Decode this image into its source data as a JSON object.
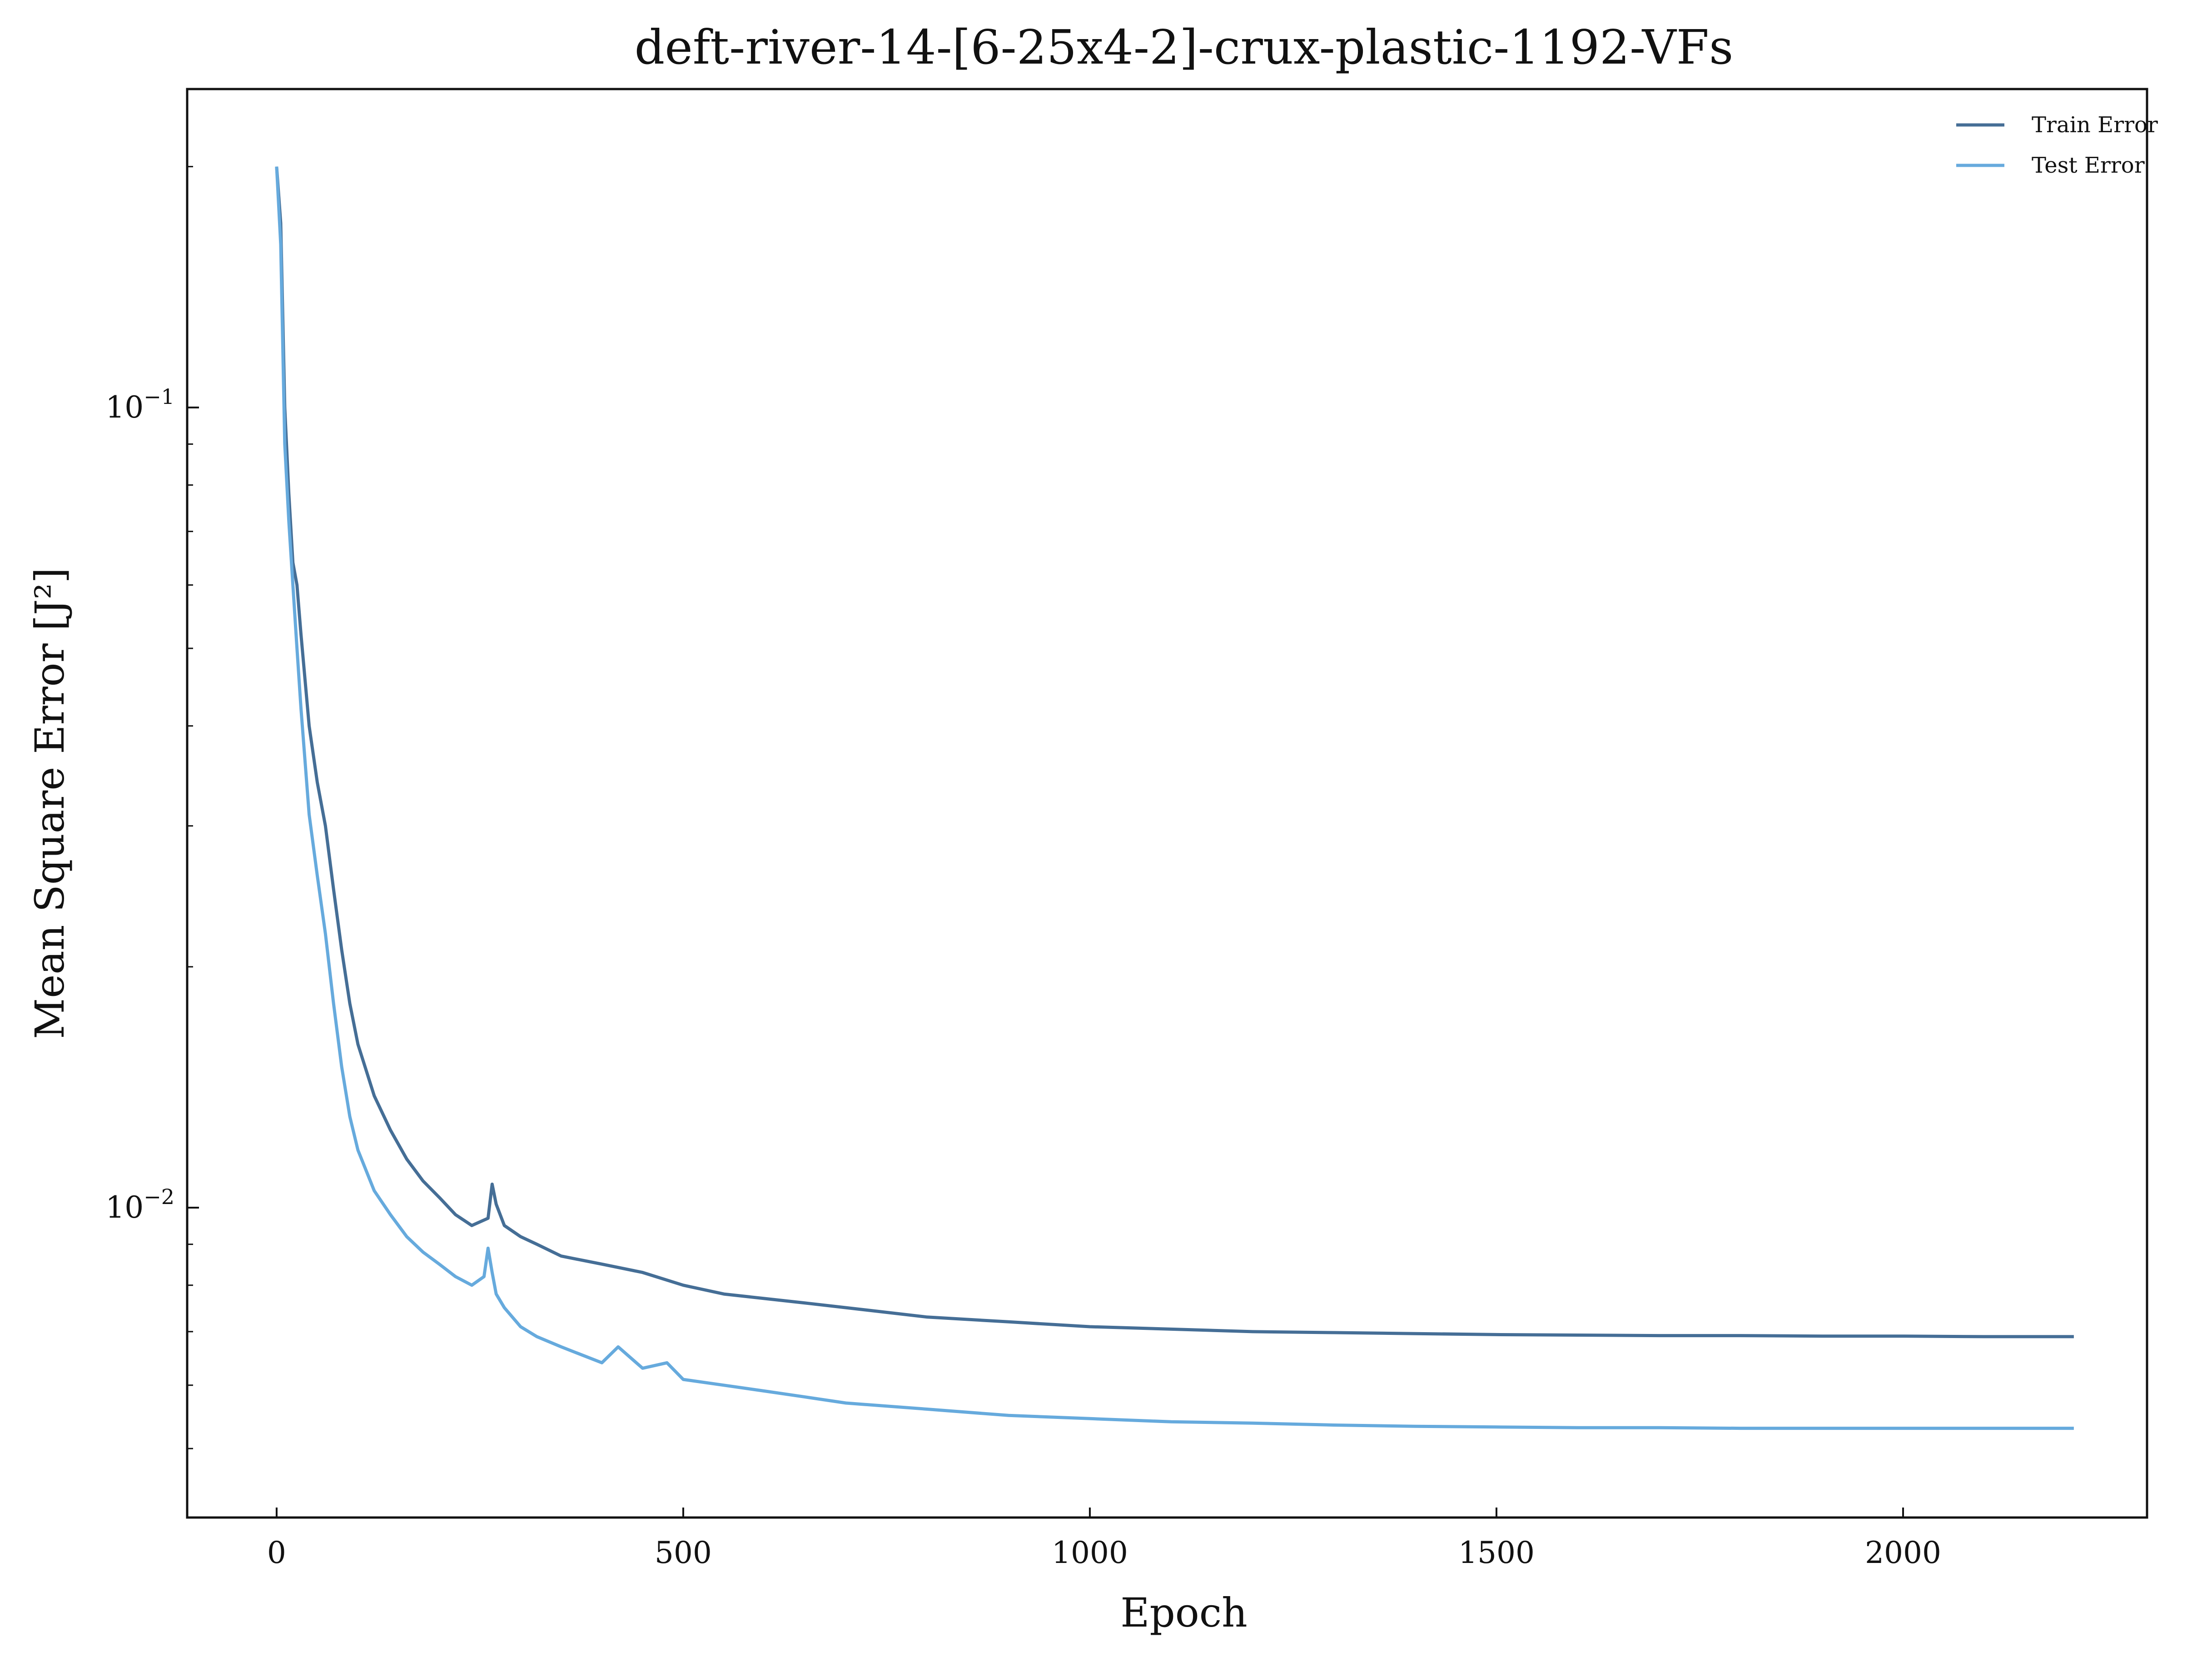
{
  "chart_data": {
    "type": "line",
    "title": "deft-river-14-[6-25x4-2]-crux-plastic-1192-VFs",
    "xlabel": "Epoch",
    "ylabel": "Mean Square Error [J²]",
    "xlim": [
      -110,
      2300
    ],
    "ylim": [
      0.0041,
      0.25
    ],
    "yscale": "log",
    "xticks": [
      {
        "value": 0,
        "label": "0"
      },
      {
        "value": 500,
        "label": "500"
      },
      {
        "value": 1000,
        "label": "1000"
      },
      {
        "value": 1500,
        "label": "1500"
      },
      {
        "value": 2000,
        "label": "2000"
      }
    ],
    "yticks": [
      {
        "value": 0.1,
        "label": "10",
        "exp": "−1"
      },
      {
        "value": 0.01,
        "label": "10",
        "exp": "−2"
      }
    ],
    "grid": false,
    "legend": "top-right",
    "series": [
      {
        "name": "Train Error",
        "color": "#456e96",
        "x": [
          0,
          5,
          10,
          15,
          20,
          25,
          30,
          40,
          50,
          60,
          70,
          80,
          90,
          100,
          120,
          140,
          160,
          180,
          200,
          220,
          240,
          260,
          265,
          270,
          280,
          300,
          320,
          350,
          400,
          450,
          500,
          550,
          600,
          650,
          700,
          800,
          900,
          1000,
          1100,
          1200,
          1300,
          1400,
          1500,
          1600,
          1700,
          1800,
          1900,
          2000,
          2100,
          2210
        ],
        "y": [
          0.2,
          0.17,
          0.1,
          0.078,
          0.064,
          0.06,
          0.052,
          0.04,
          0.034,
          0.03,
          0.025,
          0.021,
          0.018,
          0.016,
          0.0138,
          0.0125,
          0.0115,
          0.0108,
          0.0103,
          0.0098,
          0.0095,
          0.0097,
          0.0107,
          0.0101,
          0.0095,
          0.0092,
          0.009,
          0.0087,
          0.0085,
          0.0083,
          0.008,
          0.0078,
          0.0077,
          0.0076,
          0.0075,
          0.0073,
          0.0072,
          0.0071,
          0.00705,
          0.007,
          0.00698,
          0.00696,
          0.00694,
          0.00693,
          0.00692,
          0.00692,
          0.00691,
          0.00691,
          0.0069,
          0.0069
        ]
      },
      {
        "name": "Test Error",
        "color": "#66aadd",
        "x": [
          0,
          5,
          10,
          15,
          20,
          25,
          30,
          40,
          50,
          60,
          70,
          80,
          90,
          100,
          120,
          140,
          160,
          180,
          200,
          220,
          240,
          255,
          260,
          265,
          270,
          280,
          300,
          320,
          350,
          400,
          420,
          450,
          480,
          500,
          550,
          600,
          650,
          700,
          800,
          900,
          1000,
          1100,
          1200,
          1300,
          1400,
          1500,
          1600,
          1700,
          1800,
          1900,
          2000,
          2100,
          2210
        ],
        "y": [
          0.2,
          0.16,
          0.09,
          0.072,
          0.06,
          0.05,
          0.042,
          0.031,
          0.026,
          0.022,
          0.018,
          0.015,
          0.013,
          0.0118,
          0.0105,
          0.0098,
          0.0092,
          0.0088,
          0.0085,
          0.0082,
          0.008,
          0.0082,
          0.0089,
          0.0083,
          0.0078,
          0.0075,
          0.0071,
          0.0069,
          0.0067,
          0.0064,
          0.0067,
          0.0063,
          0.0064,
          0.0061,
          0.006,
          0.0059,
          0.0058,
          0.0057,
          0.0056,
          0.0055,
          0.00545,
          0.0054,
          0.00538,
          0.00535,
          0.00533,
          0.00532,
          0.00531,
          0.00531,
          0.0053,
          0.0053,
          0.0053,
          0.0053,
          0.0053
        ]
      }
    ]
  }
}
